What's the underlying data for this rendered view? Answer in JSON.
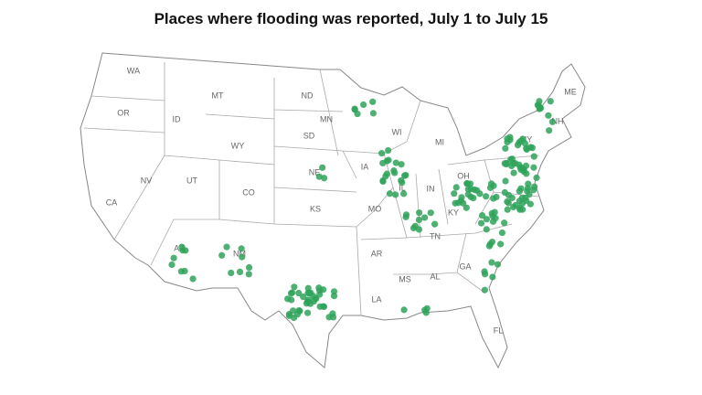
{
  "title": "Places where flooding was reported, July 1 to July 15",
  "state_labels": [
    "WA",
    "OR",
    "CA",
    "ID",
    "NV",
    "UT",
    "AZ",
    "MT",
    "WY",
    "CO",
    "NM",
    "ND",
    "SD",
    "NE",
    "KS",
    "MN",
    "IA",
    "MO",
    "AR",
    "LA",
    "WI",
    "IL",
    "MS",
    "MI",
    "IN",
    "KY",
    "TN",
    "AL",
    "GA",
    "FL",
    "OH",
    "NY",
    "NH",
    "ME"
  ]
}
